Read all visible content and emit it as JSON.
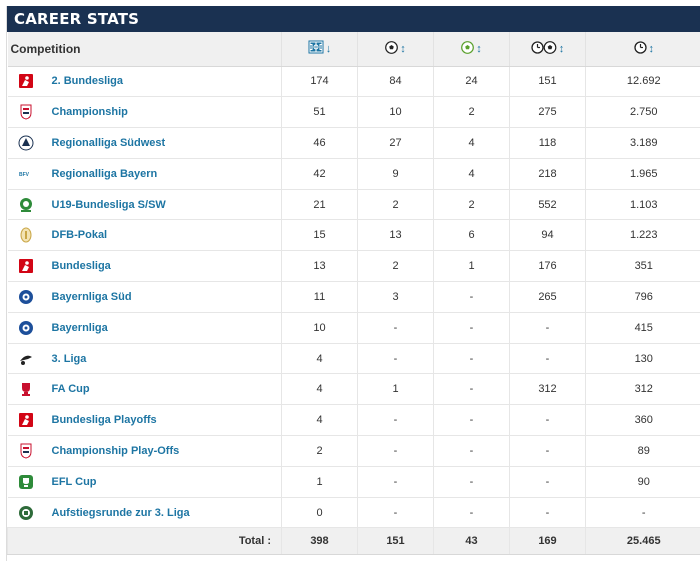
{
  "title": "CAREER STATS",
  "header": {
    "competition": "Competition",
    "columns": [
      {
        "icon": "appearances-icon",
        "sort": "↓"
      },
      {
        "icon": "goals-icon",
        "sort": "↕"
      },
      {
        "icon": "assists-icon",
        "sort": "↕"
      },
      {
        "icon": "minutes-per-goal-icon",
        "sort": "↕"
      },
      {
        "icon": "minutes-played-icon",
        "sort": "↕"
      }
    ]
  },
  "rows": [
    {
      "competition": "2. Bundesliga",
      "logo": "bundesliga-logo-icon",
      "apps": "174",
      "goals": "84",
      "assists": "24",
      "mpg": "151",
      "minutes": "12.692"
    },
    {
      "competition": "Championship",
      "logo": "efl-logo-icon",
      "apps": "51",
      "goals": "10",
      "assists": "2",
      "mpg": "275",
      "minutes": "2.750"
    },
    {
      "competition": "Regionalliga Südwest",
      "logo": "regionalliga-logo-icon",
      "apps": "46",
      "goals": "27",
      "assists": "4",
      "mpg": "118",
      "minutes": "3.189"
    },
    {
      "competition": "Regionalliga Bayern",
      "logo": "regionalliga-bayern-logo-icon",
      "apps": "42",
      "goals": "9",
      "assists": "4",
      "mpg": "218",
      "minutes": "1.965"
    },
    {
      "competition": "U19-Bundesliga S/SW",
      "logo": "u19-logo-icon",
      "apps": "21",
      "goals": "2",
      "assists": "2",
      "mpg": "552",
      "minutes": "1.103"
    },
    {
      "competition": "DFB-Pokal",
      "logo": "dfb-pokal-logo-icon",
      "apps": "15",
      "goals": "13",
      "assists": "6",
      "mpg": "94",
      "minutes": "1.223"
    },
    {
      "competition": "Bundesliga",
      "logo": "bundesliga-logo-icon",
      "apps": "13",
      "goals": "2",
      "assists": "1",
      "mpg": "176",
      "minutes": "351"
    },
    {
      "competition": "Bayernliga Süd",
      "logo": "bayernliga-logo-icon",
      "apps": "11",
      "goals": "3",
      "assists": "-",
      "mpg": "265",
      "minutes": "796"
    },
    {
      "competition": "Bayernliga",
      "logo": "bayernliga-logo-icon",
      "apps": "10",
      "goals": "-",
      "assists": "-",
      "mpg": "-",
      "minutes": "415"
    },
    {
      "competition": "3. Liga",
      "logo": "3-liga-logo-icon",
      "apps": "4",
      "goals": "-",
      "assists": "-",
      "mpg": "-",
      "minutes": "130"
    },
    {
      "competition": "FA Cup",
      "logo": "fa-cup-logo-icon",
      "apps": "4",
      "goals": "1",
      "assists": "-",
      "mpg": "312",
      "minutes": "312"
    },
    {
      "competition": "Bundesliga Playoffs",
      "logo": "bundesliga-logo-icon",
      "apps": "4",
      "goals": "-",
      "assists": "-",
      "mpg": "-",
      "minutes": "360"
    },
    {
      "competition": "Championship Play-Offs",
      "logo": "efl-logo-icon",
      "apps": "2",
      "goals": "-",
      "assists": "-",
      "mpg": "-",
      "minutes": "89"
    },
    {
      "competition": "EFL Cup",
      "logo": "efl-cup-logo-icon",
      "apps": "1",
      "goals": "-",
      "assists": "-",
      "mpg": "-",
      "minutes": "90"
    },
    {
      "competition": "Aufstiegsrunde zur 3. Liga",
      "logo": "aufstiegsrunde-logo-icon",
      "apps": "0",
      "goals": "-",
      "assists": "-",
      "mpg": "-",
      "minutes": "-"
    }
  ],
  "total": {
    "label": "Total :",
    "apps": "398",
    "goals": "151",
    "assists": "43",
    "mpg": "169",
    "minutes": "25.465"
  },
  "colors": {
    "header_bg": "#1a3151",
    "link": "#1d75a3",
    "row_border": "#e6e6e6",
    "thead_bg": "#f0f0f0"
  }
}
